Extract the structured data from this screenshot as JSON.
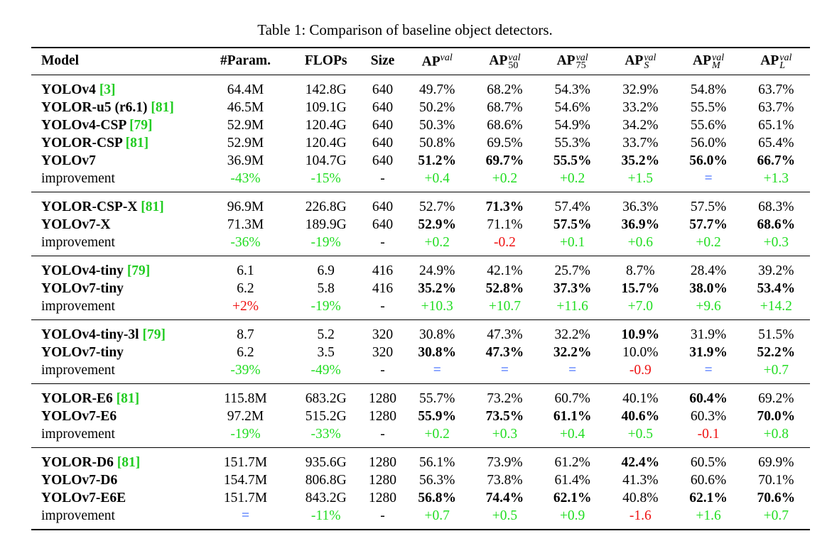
{
  "caption": "Table 1: Comparison of baseline object detectors.",
  "columns": {
    "model": "Model",
    "param": "#Param.",
    "flops": "FLOPs",
    "size": "Size",
    "ap": {
      "base": "AP",
      "sup": "val"
    },
    "ap50": {
      "base": "AP",
      "sup": "val",
      "sub": "50"
    },
    "ap75": {
      "base": "AP",
      "sup": "val",
      "sub": "75"
    },
    "aps": {
      "base": "AP",
      "sup": "val",
      "sub": "S"
    },
    "apm": {
      "base": "AP",
      "sup": "val",
      "sub": "M"
    },
    "apl": {
      "base": "AP",
      "sup": "val",
      "sub": "L"
    }
  },
  "groups": [
    {
      "rows": [
        {
          "model": "YOLOv4",
          "cite": "[3]",
          "param": "64.4M",
          "flops": "142.8G",
          "size": "640",
          "ap": "49.7%",
          "ap50": "68.2%",
          "ap75": "54.3%",
          "aps": "32.9%",
          "apm": "54.8%",
          "apl": "63.7%"
        },
        {
          "model": "YOLOR-u5 (r6.1)",
          "cite": "[81]",
          "param": "46.5M",
          "flops": "109.1G",
          "size": "640",
          "ap": "50.2%",
          "ap50": "68.7%",
          "ap75": "54.6%",
          "aps": "33.2%",
          "apm": "55.5%",
          "apl": "63.7%"
        },
        {
          "model": "YOLOv4-CSP",
          "cite": "[79]",
          "param": "52.9M",
          "flops": "120.4G",
          "size": "640",
          "ap": "50.3%",
          "ap50": "68.6%",
          "ap75": "54.9%",
          "aps": "34.2%",
          "apm": "55.6%",
          "apl": "65.1%"
        },
        {
          "model": "YOLOR-CSP",
          "cite": "[81]",
          "param": "52.9M",
          "flops": "120.4G",
          "size": "640",
          "ap": "50.8%",
          "ap50": "69.5%",
          "ap75": "55.3%",
          "aps": "33.7%",
          "apm": "56.0%",
          "apl": "65.4%"
        },
        {
          "model": "YOLOv7",
          "cite": "",
          "param": "36.9M",
          "flops": "104.7G",
          "size": "640",
          "ap": "51.2%",
          "ap50": "69.7%",
          "ap75": "55.5%",
          "aps": "35.2%",
          "apm": "56.0%",
          "apl": "66.7%"
        }
      ],
      "improvement": {
        "label": "improvement",
        "param": "-43%",
        "flops": "-15%",
        "size": "-",
        "ap": "+0.4",
        "ap50": "+0.2",
        "ap75": "+0.2",
        "aps": "+1.5",
        "apm": "=",
        "apl": "+1.3"
      }
    },
    {
      "rows": [
        {
          "model": "YOLOR-CSP-X",
          "cite": "[81]",
          "param": "96.9M",
          "flops": "226.8G",
          "size": "640",
          "ap": "52.7%",
          "ap50": "71.3%",
          "ap75": "57.4%",
          "aps": "36.3%",
          "apm": "57.5%",
          "apl": "68.3%"
        },
        {
          "model": "YOLOv7-X",
          "cite": "",
          "param": "71.3M",
          "flops": "189.9G",
          "size": "640",
          "ap": "52.9%",
          "ap50": "71.1%",
          "ap75": "57.5%",
          "aps": "36.9%",
          "apm": "57.7%",
          "apl": "68.6%"
        }
      ],
      "improvement": {
        "label": "improvement",
        "param": "-36%",
        "flops": "-19%",
        "size": "-",
        "ap": "+0.2",
        "ap50": "-0.2",
        "ap75": "+0.1",
        "aps": "+0.6",
        "apm": "+0.2",
        "apl": "+0.3"
      }
    },
    {
      "rows": [
        {
          "model": "YOLOv4-tiny",
          "cite": "[79]",
          "param": "6.1",
          "flops": "6.9",
          "size": "416",
          "ap": "24.9%",
          "ap50": "42.1%",
          "ap75": "25.7%",
          "aps": "8.7%",
          "apm": "28.4%",
          "apl": "39.2%"
        },
        {
          "model": "YOLOv7-tiny",
          "cite": "",
          "param": "6.2",
          "flops": "5.8",
          "size": "416",
          "ap": "35.2%",
          "ap50": "52.8%",
          "ap75": "37.3%",
          "aps": "15.7%",
          "apm": "38.0%",
          "apl": "53.4%"
        }
      ],
      "improvement": {
        "label": "improvement",
        "param": "+2%",
        "flops": "-19%",
        "size": "-",
        "ap": "+10.3",
        "ap50": "+10.7",
        "ap75": "+11.6",
        "aps": "+7.0",
        "apm": "+9.6",
        "apl": "+14.2"
      }
    },
    {
      "rows": [
        {
          "model": "YOLOv4-tiny-3l",
          "cite": "[79]",
          "param": "8.7",
          "flops": "5.2",
          "size": "320",
          "ap": "30.8%",
          "ap50": "47.3%",
          "ap75": "32.2%",
          "aps": "10.9%",
          "apm": "31.9%",
          "apl": "51.5%"
        },
        {
          "model": "YOLOv7-tiny",
          "cite": "",
          "param": "6.2",
          "flops": "3.5",
          "size": "320",
          "ap": "30.8%",
          "ap50": "47.3%",
          "ap75": "32.2%",
          "aps": "10.0%",
          "apm": "31.9%",
          "apl": "52.2%"
        }
      ],
      "improvement": {
        "label": "improvement",
        "param": "-39%",
        "flops": "-49%",
        "size": "-",
        "ap": "=",
        "ap50": "=",
        "ap75": "=",
        "aps": "-0.9",
        "apm": "=",
        "apl": "+0.7"
      }
    },
    {
      "rows": [
        {
          "model": "YOLOR-E6",
          "cite": "[81]",
          "param": "115.8M",
          "flops": "683.2G",
          "size": "1280",
          "ap": "55.7%",
          "ap50": "73.2%",
          "ap75": "60.7%",
          "aps": "40.1%",
          "apm": "60.4%",
          "apl": "69.2%"
        },
        {
          "model": "YOLOv7-E6",
          "cite": "",
          "param": "97.2M",
          "flops": "515.2G",
          "size": "1280",
          "ap": "55.9%",
          "ap50": "73.5%",
          "ap75": "61.1%",
          "aps": "40.6%",
          "apm": "60.3%",
          "apl": "70.0%"
        }
      ],
      "improvement": {
        "label": "improvement",
        "param": "-19%",
        "flops": "-33%",
        "size": "-",
        "ap": "+0.2",
        "ap50": "+0.3",
        "ap75": "+0.4",
        "aps": "+0.5",
        "apm": "-0.1",
        "apl": "+0.8"
      }
    },
    {
      "rows": [
        {
          "model": "YOLOR-D6",
          "cite": "[81]",
          "param": "151.7M",
          "flops": "935.6G",
          "size": "1280",
          "ap": "56.1%",
          "ap50": "73.9%",
          "ap75": "61.2%",
          "aps": "42.4%",
          "apm": "60.5%",
          "apl": "69.9%"
        },
        {
          "model": "YOLOv7-D6",
          "cite": "",
          "param": "154.7M",
          "flops": "806.8G",
          "size": "1280",
          "ap": "56.3%",
          "ap50": "73.8%",
          "ap75": "61.4%",
          "aps": "41.3%",
          "apm": "60.6%",
          "apl": "70.1%"
        },
        {
          "model": "YOLOv7-E6E",
          "cite": "",
          "param": "151.7M",
          "flops": "843.2G",
          "size": "1280",
          "ap": "56.8%",
          "ap50": "74.4%",
          "ap75": "62.1%",
          "aps": "40.8%",
          "apm": "62.1%",
          "apl": "70.6%"
        }
      ],
      "improvement": {
        "label": "improvement",
        "param": "=",
        "flops": "-11%",
        "size": "-",
        "ap": "+0.7",
        "ap50": "+0.5",
        "ap75": "+0.9",
        "aps": "-1.6",
        "apm": "+1.6",
        "apl": "+0.7"
      }
    }
  ],
  "bold_cells": [
    "0.4.ap",
    "0.4.ap50",
    "0.4.ap75",
    "0.4.aps",
    "0.4.apm",
    "0.4.apl",
    "1.0.ap50",
    "1.1.ap",
    "1.1.ap75",
    "1.1.aps",
    "1.1.apm",
    "1.1.apl",
    "2.1.ap",
    "2.1.ap50",
    "2.1.ap75",
    "2.1.aps",
    "2.1.apm",
    "2.1.apl",
    "3.0.aps",
    "3.1.ap",
    "3.1.ap50",
    "3.1.ap75",
    "3.1.apm",
    "3.1.apl",
    "4.0.apm",
    "4.1.ap",
    "4.1.ap50",
    "4.1.ap75",
    "4.1.aps",
    "4.1.apl",
    "5.0.aps",
    "5.2.ap",
    "5.2.ap50",
    "5.2.ap75",
    "5.2.apm",
    "5.2.apl"
  ],
  "colors": {
    "positive": "#22dd22",
    "negative": "#ee1111",
    "equal": "#2255ff",
    "citation": "#22cc22"
  }
}
